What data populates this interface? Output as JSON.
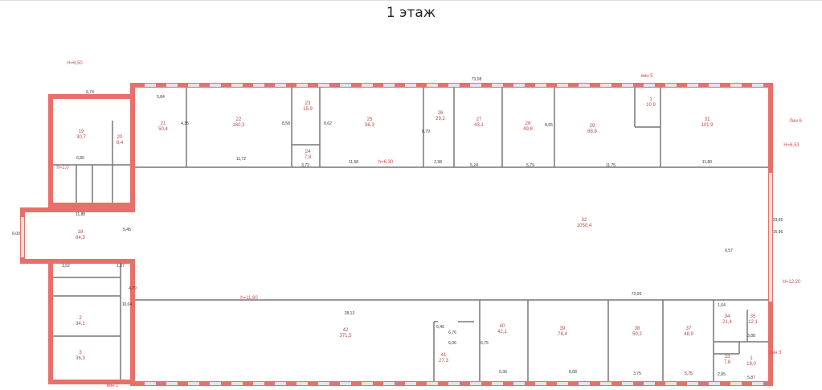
{
  "title": "1 этаж",
  "colors": {
    "wall": "#e8706a",
    "partition": "#777777",
    "window": "#e4e4e4",
    "room_label": "#b04a4a"
  },
  "notes": [
    "H=6,50",
    "h=2,0",
    "кмн 5",
    "H=6,53",
    "h=6,30",
    "h=11,80",
    "H=12,20",
    "кмн 3",
    "кмн 1",
    "Лин 6"
  ],
  "rooms": [
    {
      "num": "19",
      "area": "30,7"
    },
    {
      "num": "20",
      "area": "8,4"
    },
    {
      "num": "21",
      "area": "50,4"
    },
    {
      "num": "22",
      "area": "160,3"
    },
    {
      "num": "23",
      "area": "15,9"
    },
    {
      "num": "24",
      "area": "7,8"
    },
    {
      "num": "25",
      "area": "96,3"
    },
    {
      "num": "26",
      "area": "29,2"
    },
    {
      "num": "27",
      "area": "43,1"
    },
    {
      "num": "28",
      "area": "49,8"
    },
    {
      "num": "29",
      "area": "88,8"
    },
    {
      "num": "1",
      "area": "10,9"
    },
    {
      "num": "31",
      "area": "101,9"
    },
    {
      "num": "32",
      "area": "1050,4"
    },
    {
      "num": "42",
      "area": "371,5"
    },
    {
      "num": "41",
      "area": "27,3"
    },
    {
      "num": "40",
      "area": "42,1"
    },
    {
      "num": "39",
      "area": "78,4"
    },
    {
      "num": "38",
      "area": "50,2"
    },
    {
      "num": "37",
      "area": "48,9"
    },
    {
      "num": "34",
      "area": "21,4"
    },
    {
      "num": "35",
      "area": "12,1"
    },
    {
      "num": "33",
      "area": "7,8"
    },
    {
      "num": "1",
      "area": "18,0"
    },
    {
      "num": "18",
      "area": "84,3"
    },
    {
      "num": "2",
      "area": "34,1"
    },
    {
      "num": "3",
      "area": "36,3"
    }
  ],
  "dimensions": [
    "6,74",
    "5,84",
    "73,08",
    "11,72",
    "3,72",
    "11,58",
    "2,38",
    "5,24",
    "5,79",
    "11,75",
    "11,80",
    "6,80",
    "11,88",
    "6,00",
    "5,45",
    "4,35",
    "8,58",
    "8,62",
    "8,79",
    "8,65",
    "28,13",
    "72,05",
    "6,76",
    "6,06",
    "5,36",
    "8,68",
    "3,75",
    "5,75",
    "5,87",
    "1,64",
    "3,88",
    "2,85",
    "15,96",
    "33,65",
    "6,57",
    "6,40",
    "6,75",
    "3,52",
    "1,37",
    "4,79",
    "10,04"
  ]
}
